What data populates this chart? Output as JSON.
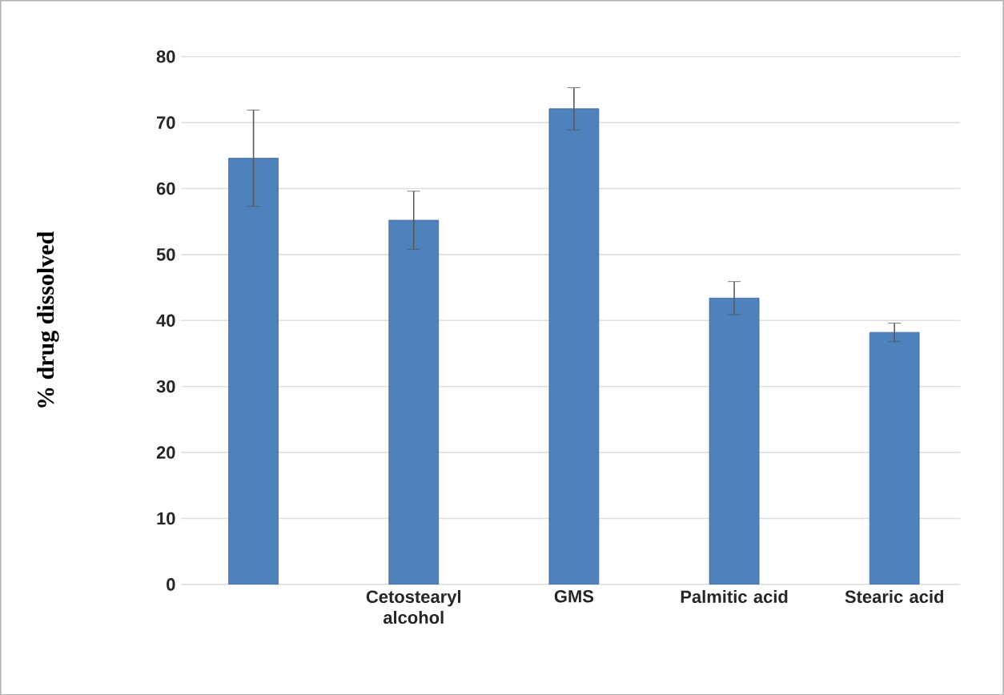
{
  "chart_data": {
    "type": "bar",
    "ylabel": "% drug dissolved",
    "categories": [
      null,
      "Cetostearyl alcohol",
      "GMS",
      "Palmitic acid",
      "Stearic acid"
    ],
    "values": [
      64.6,
      55.2,
      72.1,
      43.4,
      38.2
    ],
    "errors": [
      7.3,
      4.4,
      3.2,
      2.5,
      1.4
    ],
    "color": "#4f81bd",
    "ylim": [
      0,
      80
    ],
    "yticks": [
      0,
      10,
      20,
      30,
      40,
      50,
      60,
      70,
      80
    ],
    "grid": "y"
  }
}
